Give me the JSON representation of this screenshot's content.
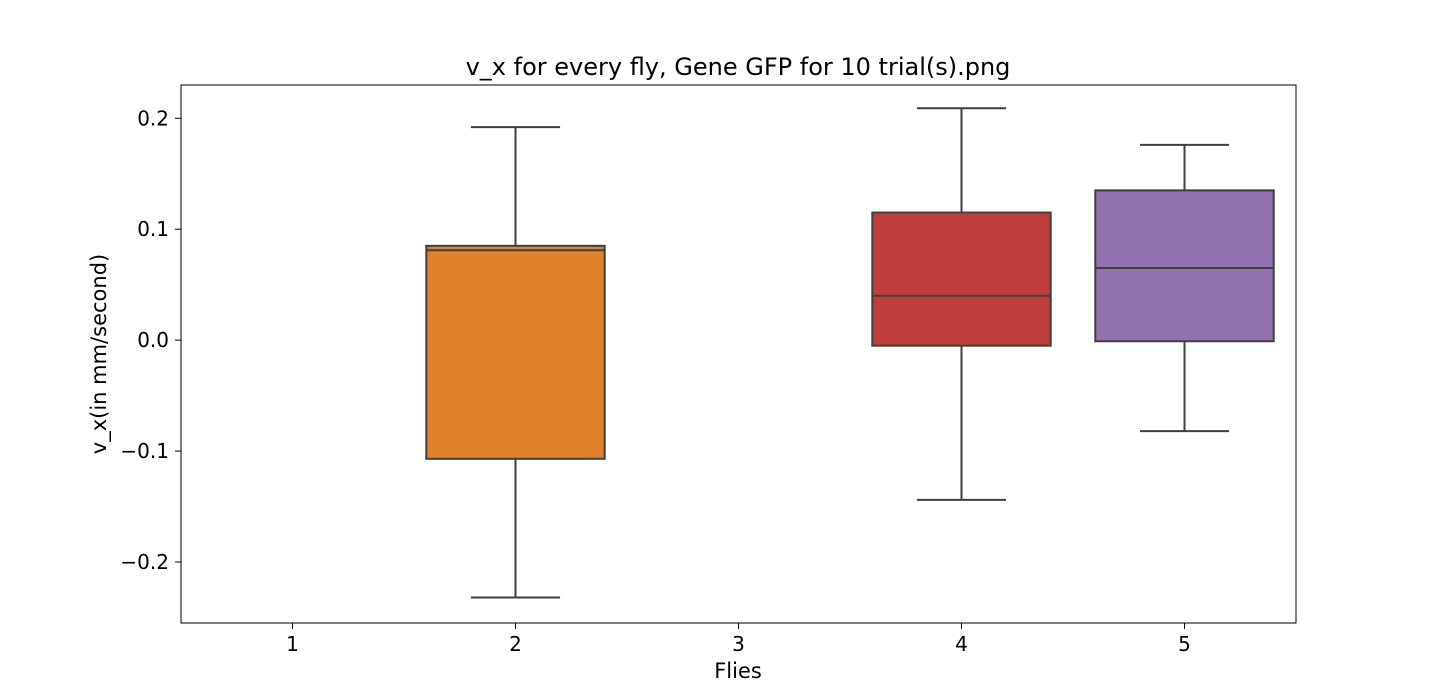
{
  "chart_data": {
    "type": "box",
    "title": "v_x for every fly, Gene GFP for 10 trial(s).png",
    "xlabel": "Flies",
    "ylabel": "v_x(in mm/second)",
    "categories": [
      "1",
      "2",
      "3",
      "4",
      "5"
    ],
    "ylim": [
      -0.255,
      0.23
    ],
    "yticks": [
      -0.2,
      -0.1,
      0.0,
      0.1,
      0.2
    ],
    "ytick_labels": [
      "−0.2",
      "−0.1",
      "0.0",
      "0.1",
      "0.2"
    ],
    "grid": false,
    "boxes": [
      {
        "category": "1",
        "whisker_low": null,
        "q1": null,
        "median": null,
        "q3": null,
        "whisker_high": null,
        "color": null
      },
      {
        "category": "2",
        "whisker_low": -0.232,
        "q1": -0.107,
        "median": 0.081,
        "q3": 0.085,
        "whisker_high": 0.192,
        "color": "#e1812c"
      },
      {
        "category": "3",
        "whisker_low": null,
        "q1": null,
        "median": null,
        "q3": null,
        "whisker_high": null,
        "color": null
      },
      {
        "category": "4",
        "whisker_low": -0.144,
        "q1": -0.005,
        "median": 0.04,
        "q3": 0.115,
        "whisker_high": 0.209,
        "color": "#c03d3e"
      },
      {
        "category": "5",
        "whisker_low": -0.082,
        "q1": -0.001,
        "median": 0.065,
        "q3": 0.135,
        "whisker_high": 0.176,
        "color": "#9372b2"
      }
    ],
    "line_color": "#3f3f3f"
  }
}
